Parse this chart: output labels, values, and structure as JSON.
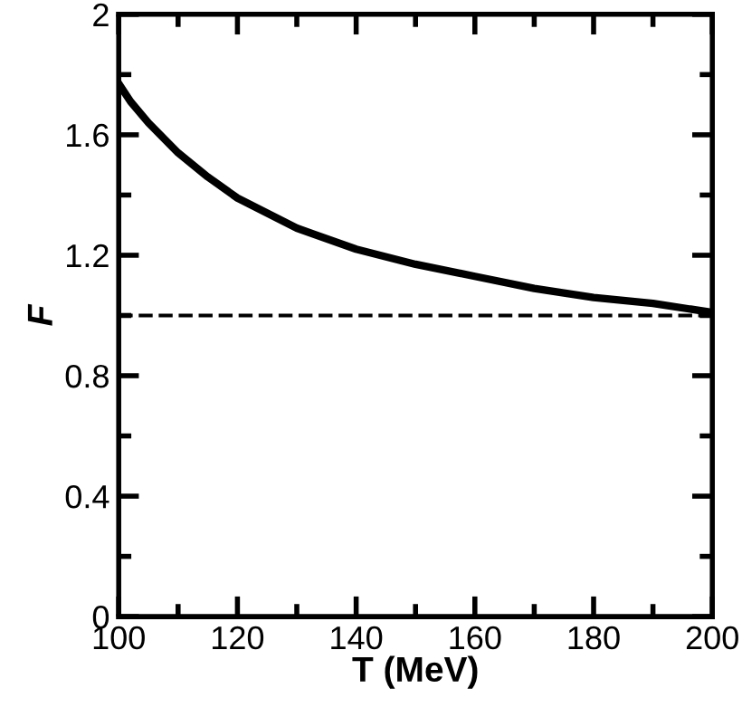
{
  "chart_data": {
    "type": "line",
    "xlabel": "T (MeV)",
    "ylabel": "F",
    "x": [
      100,
      102,
      105,
      110,
      115,
      120,
      130,
      140,
      150,
      160,
      170,
      180,
      190,
      200
    ],
    "series": [
      {
        "color": "#000000",
        "values": [
          1.77,
          1.71,
          1.64,
          1.54,
          1.46,
          1.39,
          1.29,
          1.22,
          1.17,
          1.13,
          1.09,
          1.06,
          1.04,
          1.01
        ]
      }
    ],
    "ref_lines": [
      {
        "axis": "y",
        "value": 1.0,
        "color": "#000000",
        "line_style": "dashed"
      }
    ],
    "xlim": [
      100,
      200
    ],
    "ylim": [
      0,
      2
    ],
    "xticks": [
      100,
      120,
      140,
      160,
      180,
      200
    ],
    "yticks": [
      0,
      0.4,
      0.8,
      1.2,
      1.6,
      2
    ],
    "grid": false,
    "legend": false
  }
}
